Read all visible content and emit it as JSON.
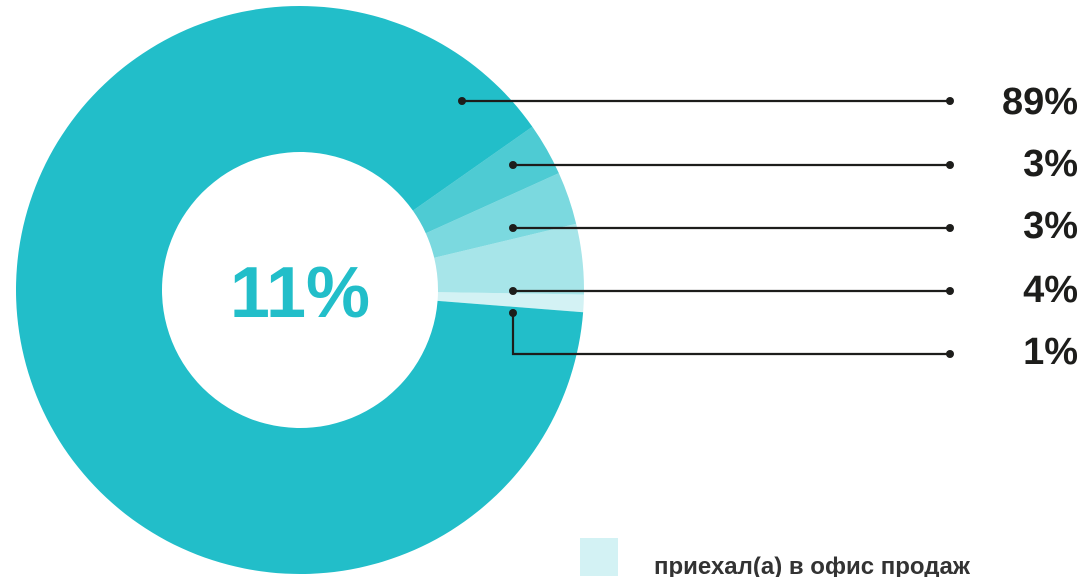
{
  "center_label": "11%",
  "colors": {
    "main": "#22bec9",
    "slice2": "#4ecbd3",
    "slice3": "#7bd9df",
    "slice4": "#a7e5e9",
    "slice5": "#d3f2f4",
    "leader": "#1d1d1b",
    "center_text": "#22bec9"
  },
  "chart_data": {
    "type": "pie",
    "variant": "donut",
    "center_label": "11%",
    "slices": [
      {
        "label": "89%",
        "value": 89
      },
      {
        "label": "3%",
        "value": 3
      },
      {
        "label": "3%",
        "value": 3
      },
      {
        "label": "4%",
        "value": 4
      },
      {
        "label": "1%",
        "value": 1
      }
    ],
    "legend": [
      {
        "label": "приехал(а) в офис продаж",
        "color": "#d3f2f4"
      }
    ],
    "legend_placement": "bottom-right"
  }
}
